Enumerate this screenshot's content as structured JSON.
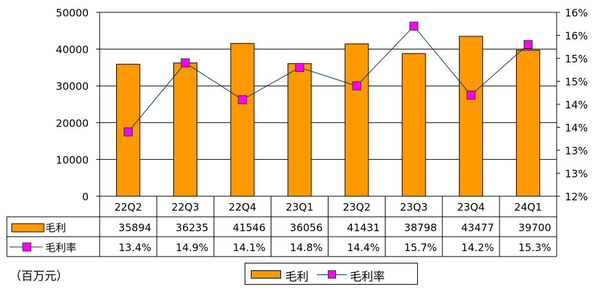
{
  "chart_data": {
    "type": "bar",
    "categories": [
      "22Q2",
      "22Q3",
      "22Q4",
      "23Q1",
      "23Q2",
      "23Q3",
      "23Q4",
      "24Q1"
    ],
    "series": [
      {
        "name": "毛利",
        "type": "bar",
        "axis": "left",
        "color": "#FF9900",
        "values": [
          35894,
          36235,
          41546,
          36056,
          41431,
          38798,
          43477,
          39700
        ]
      },
      {
        "name": "毛利率",
        "type": "line",
        "axis": "right",
        "color": "#003366",
        "marker_color": "#FF00FF",
        "values": [
          13.4,
          14.9,
          14.1,
          14.8,
          14.4,
          15.7,
          14.2,
          15.3
        ]
      }
    ],
    "table_rows": [
      {
        "label": "毛利",
        "values": [
          "35894",
          "36235",
          "41546",
          "36056",
          "41431",
          "38798",
          "43477",
          "39700"
        ]
      },
      {
        "label": "毛利率",
        "values": [
          "13.4%",
          "14.9%",
          "14.1%",
          "14.8%",
          "14.4%",
          "15.7%",
          "14.2%",
          "15.3%"
        ]
      }
    ],
    "y_left": {
      "min": 0,
      "max": 50000,
      "ticks": [
        "0",
        "10000",
        "20000",
        "30000",
        "40000",
        "50000"
      ]
    },
    "y_right": {
      "min": 12,
      "max": 16,
      "tick_labels": [
        "12%",
        "13%",
        "13%",
        "14%",
        "14%",
        "15%",
        "15%",
        "16%",
        "16%"
      ]
    },
    "unit_label": "（百万元）",
    "legend": {
      "position": "bottom",
      "items": [
        "毛利",
        "毛利率"
      ]
    },
    "grid": true
  }
}
